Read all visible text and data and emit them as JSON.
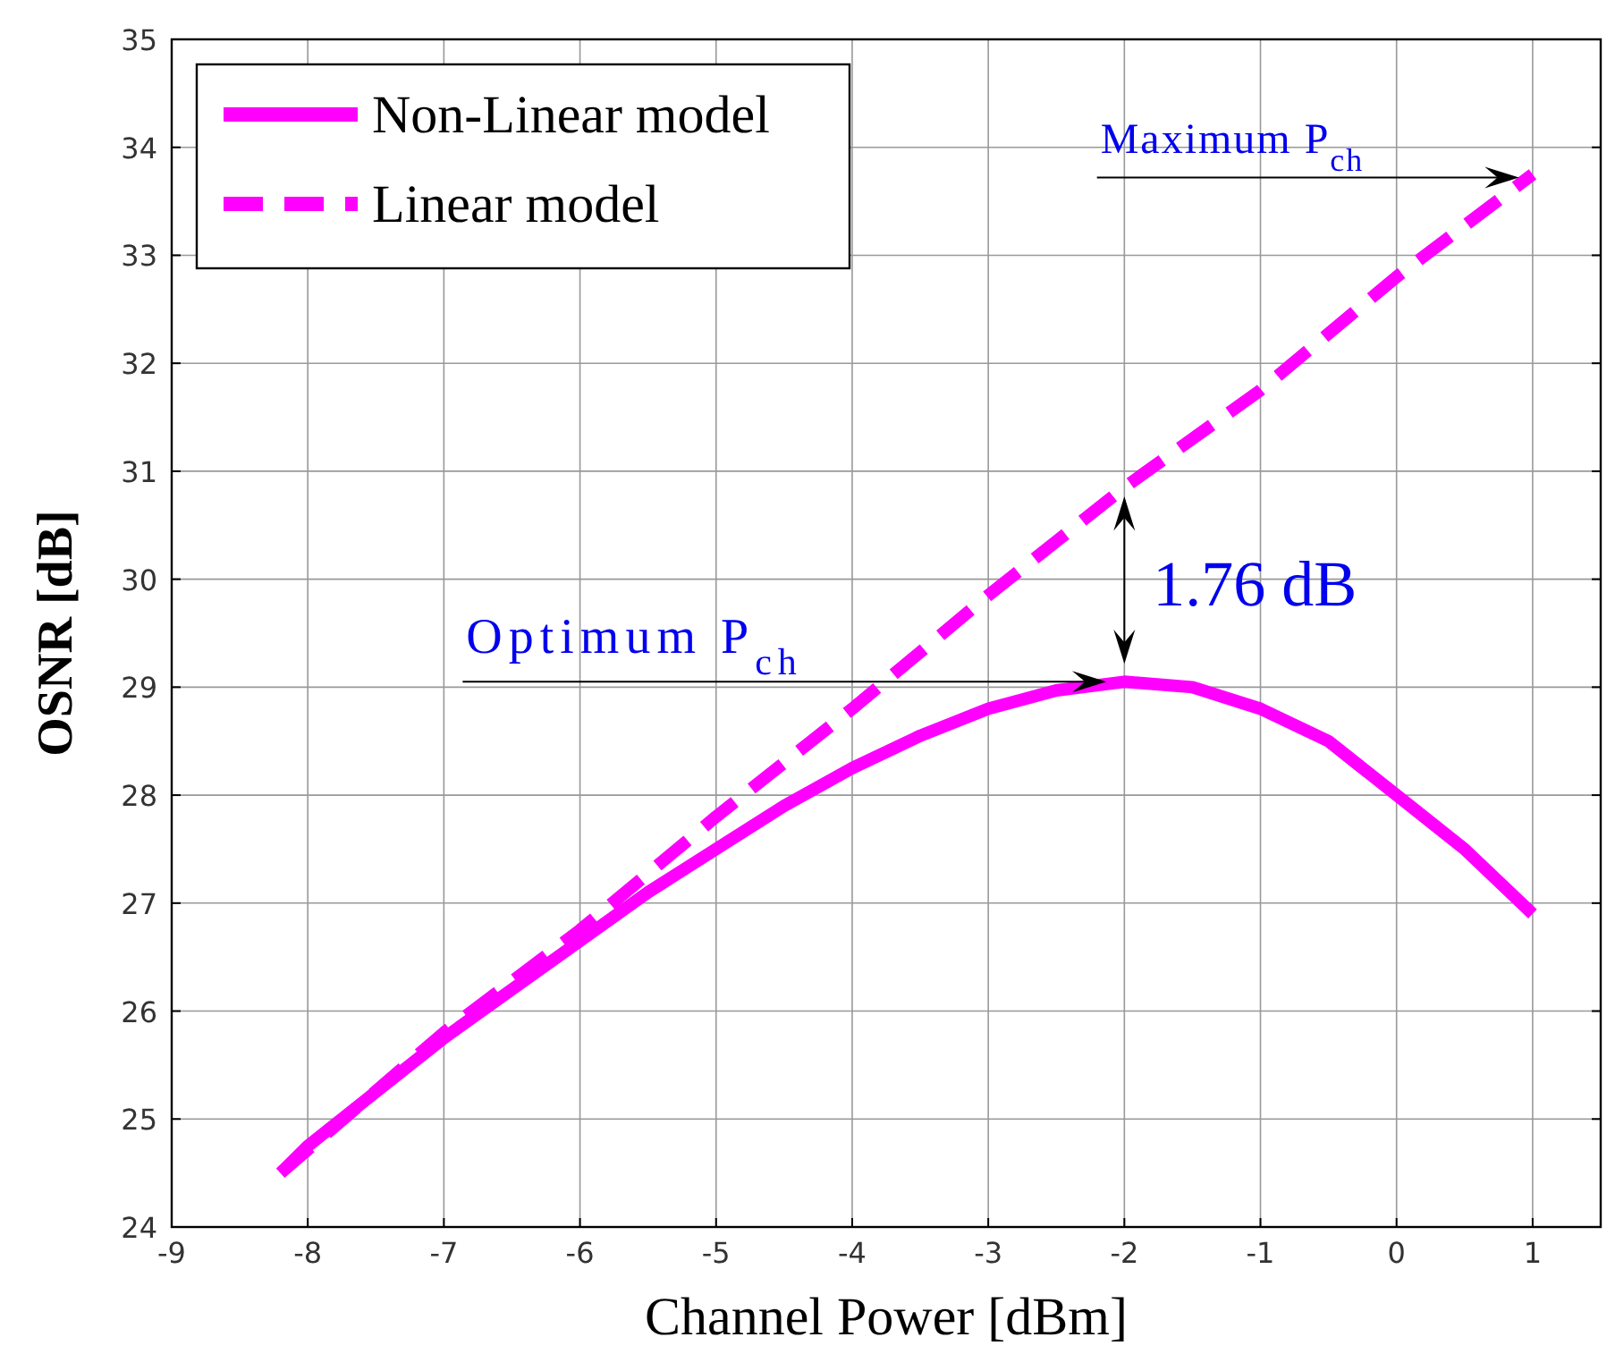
{
  "chart_data": {
    "type": "line",
    "xlabel": "Channel Power [dBm]",
    "ylabel": "OSNR [dB]",
    "xlim": [
      -9,
      1.5
    ],
    "xticks": [
      -9,
      -8,
      -7,
      -6,
      -5,
      -4,
      -3,
      -2,
      -1,
      0,
      1
    ],
    "ylim": [
      24,
      35
    ],
    "yticks": [
      24,
      25,
      26,
      27,
      28,
      29,
      30,
      31,
      32,
      33,
      34,
      35
    ],
    "grid": true,
    "legend": "top left",
    "series": [
      {
        "name": "Non-Linear model",
        "color": "#ff00ff",
        "line_style": "solid",
        "x": [
          -8.2,
          -8,
          -7.5,
          -7,
          -6.5,
          -6,
          -5.5,
          -5,
          -4.5,
          -4,
          -3.5,
          -3,
          -2.5,
          -2,
          -1.5,
          -1,
          -0.5,
          0,
          0.5,
          1
        ],
        "values": [
          24.5,
          24.75,
          25.25,
          25.75,
          26.2,
          26.65,
          27.1,
          27.5,
          27.9,
          28.25,
          28.55,
          28.8,
          28.97,
          29.05,
          29.0,
          28.8,
          28.5,
          28.0,
          27.5,
          26.9
        ]
      },
      {
        "name": "Linear model",
        "color": "#ff00ff",
        "line_style": "dashed",
        "x": [
          -8.2,
          -7,
          -6,
          -5,
          -4,
          -3,
          -2,
          -1,
          0,
          1
        ],
        "values": [
          24.5,
          25.8,
          26.75,
          27.8,
          28.8,
          29.85,
          30.85,
          31.75,
          32.8,
          33.75
        ]
      }
    ],
    "annotations": [
      "Optimum P$_{ch}$",
      {
        "text": "Maximum P$_{ch}$",
        "x": 0.9,
        "y": 33.72
      },
      {
        "text": "1.76 dB",
        "x": -2,
        "y": 30.8
      }
    ]
  }
}
